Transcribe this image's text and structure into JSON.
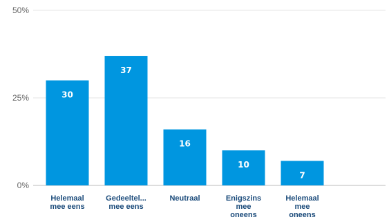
{
  "chart_data": {
    "type": "bar",
    "categories": [
      [
        "Helemaal",
        "mee eens"
      ],
      [
        "Gedeeltel...",
        "mee eens"
      ],
      [
        "Neutraal"
      ],
      [
        "Enigszins",
        "mee",
        "oneens"
      ],
      [
        "Helemaal",
        "mee",
        "oneens"
      ]
    ],
    "values": [
      30,
      37,
      16,
      10,
      7
    ],
    "value_labels": [
      "30",
      "37",
      "16",
      "10",
      "7"
    ],
    "yticks": [
      {
        "value": 0,
        "label": "0%"
      },
      {
        "value": 25,
        "label": "25%"
      },
      {
        "value": 50,
        "label": "50%"
      }
    ],
    "ylim": [
      0,
      50
    ],
    "grid": true,
    "legend": "none",
    "colors": {
      "bar": "#0096e0",
      "grid": "#e6e6e6",
      "axis": "#bbbbbb",
      "category_text": "#1a4a7a",
      "tick_text": "#666666",
      "value_text": "#ffffff"
    }
  }
}
